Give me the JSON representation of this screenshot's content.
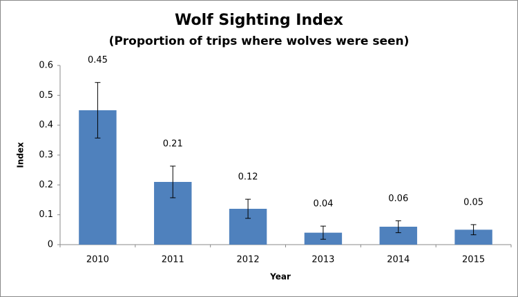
{
  "chart_data": {
    "type": "bar",
    "title": "Wolf Sighting Index",
    "subtitle": "(Proportion of trips where wolves were seen)",
    "x_label": "Year",
    "y_label": "Index",
    "categories": [
      "2010",
      "2011",
      "2012",
      "2013",
      "2014",
      "2015"
    ],
    "values": [
      0.45,
      0.21,
      0.12,
      0.04,
      0.06,
      0.05
    ],
    "errors": [
      0.093,
      0.053,
      0.032,
      0.022,
      0.02,
      0.017
    ],
    "color": "#4f81bd",
    "ylim": [
      0,
      0.6
    ],
    "yticks": [
      0,
      0.1,
      0.2,
      0.3,
      0.4,
      0.5,
      0.6
    ],
    "grid": false
  }
}
